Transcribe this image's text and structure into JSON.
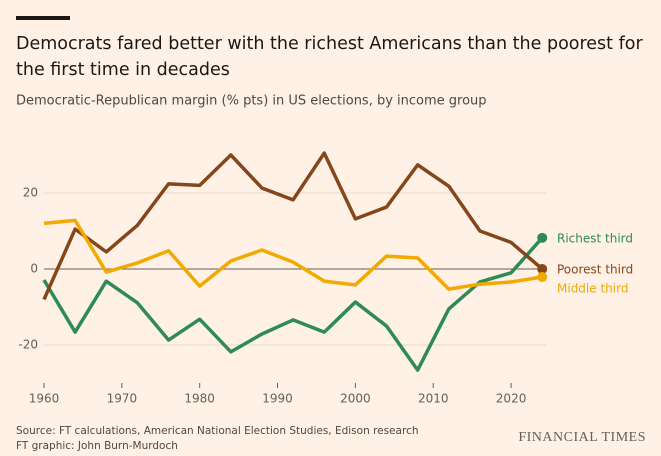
{
  "chart_data": {
    "type": "line",
    "title": "Democrats fared better with the richest Americans than the poorest for the first time in decades",
    "subtitle": "Democratic-Republican margin (% pts) in US elections, by income group",
    "x": [
      1960,
      1964,
      1968,
      1972,
      1976,
      1980,
      1984,
      1988,
      1992,
      1996,
      2000,
      2004,
      2008,
      2012,
      2016,
      2020,
      2024
    ],
    "series": [
      {
        "name": "Richest third",
        "color": "#2e8b57",
        "values": [
          -2.9,
          -16.6,
          -3.2,
          -8.9,
          -18.7,
          -13.2,
          -21.8,
          -17.1,
          -13.4,
          -16.6,
          -8.7,
          -15,
          -26.6,
          -10.5,
          -3.4,
          -1,
          8.2
        ]
      },
      {
        "name": "Poorest third",
        "color": "#86461b",
        "values": [
          -8,
          10.5,
          4.5,
          11.5,
          22.4,
          22,
          30,
          21.3,
          18.2,
          30.5,
          13.2,
          16.3,
          27.4,
          21.8,
          10,
          7,
          0
        ]
      },
      {
        "name": "Middle third",
        "color": "#f2a900",
        "values": [
          12,
          12.8,
          -0.8,
          1.6,
          4.8,
          -4.5,
          2.1,
          5,
          1.8,
          -3.2,
          -4.2,
          3.4,
          2.9,
          -5.3,
          -4,
          -3.4,
          -2.1
        ]
      }
    ],
    "xlim": [
      1960,
      2025
    ],
    "xticks": [
      1960,
      1970,
      1980,
      1990,
      2000,
      2010,
      2020
    ],
    "ylim": [
      -30,
      35
    ],
    "yticks": [
      -20,
      0,
      20
    ],
    "grid": true,
    "source": "Source: FT calculations, American National Election Studies, Edison research",
    "credit": "FT graphic: John Burn-Murdoch",
    "brand": "FINANCIAL TIMES"
  }
}
